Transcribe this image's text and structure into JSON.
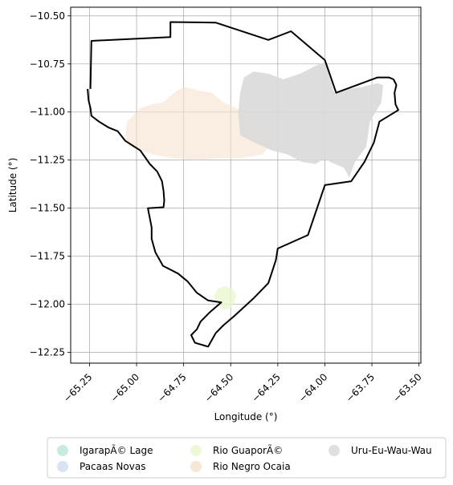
{
  "chart_data": {
    "type": "map",
    "xlabel": "Longitude (°)",
    "ylabel": "Latitude (°)",
    "xlim": [
      -65.35,
      -63.49
    ],
    "ylim": [
      -12.306,
      -10.455
    ],
    "xticks": [
      -65.25,
      -65.0,
      -64.75,
      -64.5,
      -64.25,
      -64.0,
      -63.75,
      -63.5
    ],
    "xtick_labels": [
      "−65.25",
      "−65.00",
      "−64.75",
      "−64.50",
      "−64.25",
      "−64.00",
      "−63.75",
      "−63.50"
    ],
    "yticks": [
      -10.5,
      -10.75,
      -11.0,
      -11.25,
      -11.5,
      -11.75,
      -12.0,
      -12.25
    ],
    "ytick_labels": [
      "−10.50",
      "−10.75",
      "−11.00",
      "−11.25",
      "−11.50",
      "−11.75",
      "−12.00",
      "−12.25"
    ],
    "grid": true,
    "legend_placement": "bottom-center",
    "boundary": {
      "color": "#000000",
      "coords": [
        [
          -65.26,
          -10.88
        ],
        [
          -65.255,
          -10.94
        ],
        [
          -65.245,
          -10.98
        ],
        [
          -65.24,
          -11.02
        ],
        [
          -65.2,
          -11.05
        ],
        [
          -65.15,
          -11.08
        ],
        [
          -65.1,
          -11.1
        ],
        [
          -65.06,
          -11.15
        ],
        [
          -64.98,
          -11.2
        ],
        [
          -64.93,
          -11.27
        ],
        [
          -64.89,
          -11.31
        ],
        [
          -64.88,
          -11.33
        ],
        [
          -64.865,
          -11.36
        ],
        [
          -64.857,
          -11.41
        ],
        [
          -64.853,
          -11.46
        ],
        [
          -64.857,
          -11.495
        ],
        [
          -64.94,
          -11.5
        ],
        [
          -64.92,
          -11.6
        ],
        [
          -64.92,
          -11.66
        ],
        [
          -64.9,
          -11.73
        ],
        [
          -64.86,
          -11.8
        ],
        [
          -64.78,
          -11.84
        ],
        [
          -64.73,
          -11.88
        ],
        [
          -64.68,
          -11.94
        ],
        [
          -64.62,
          -11.98
        ],
        [
          -64.55,
          -11.99
        ],
        [
          -64.61,
          -12.04
        ],
        [
          -64.66,
          -12.09
        ],
        [
          -64.68,
          -12.13
        ],
        [
          -64.71,
          -12.16
        ],
        [
          -64.69,
          -12.2
        ],
        [
          -64.62,
          -12.22
        ],
        [
          -64.58,
          -12.15
        ],
        [
          -64.54,
          -12.11
        ],
        [
          -64.48,
          -12.06
        ],
        [
          -64.38,
          -11.97
        ],
        [
          -64.3,
          -11.89
        ],
        [
          -64.26,
          -11.77
        ],
        [
          -64.25,
          -11.71
        ],
        [
          -64.09,
          -11.64
        ],
        [
          -64.0,
          -11.38
        ],
        [
          -63.86,
          -11.36
        ],
        [
          -63.79,
          -11.26
        ],
        [
          -63.74,
          -11.16
        ],
        [
          -63.71,
          -11.05
        ],
        [
          -63.61,
          -10.99
        ],
        [
          -63.625,
          -10.96
        ],
        [
          -63.63,
          -10.9
        ],
        [
          -63.62,
          -10.86
        ],
        [
          -63.635,
          -10.83
        ],
        [
          -63.66,
          -10.82
        ],
        [
          -63.69,
          -10.82
        ],
        [
          -63.72,
          -10.82
        ],
        [
          -63.94,
          -10.9
        ],
        [
          -64.0,
          -10.73
        ],
        [
          -64.18,
          -10.58
        ],
        [
          -64.3,
          -10.625
        ],
        [
          -64.58,
          -10.535
        ],
        [
          -64.82,
          -10.532
        ],
        [
          -64.82,
          -10.61
        ],
        [
          -65.24,
          -10.63
        ],
        [
          -65.245,
          -10.88
        ]
      ]
    },
    "series": [
      {
        "name": "IgarapÃ© Lage",
        "color": "#bfe8d9",
        "opacity": 0.7,
        "coords": []
      },
      {
        "name": "Pacaas Novas",
        "color": "#d4deee",
        "opacity": 0.7,
        "coords": []
      },
      {
        "name": "Rio GuaporÃ©",
        "color": "#e9f7cf",
        "opacity": 0.8,
        "coords": [
          [
            -64.57,
            -11.92
          ],
          [
            -64.53,
            -11.905
          ],
          [
            -64.49,
            -11.92
          ],
          [
            -64.47,
            -11.95
          ],
          [
            -64.48,
            -11.99
          ],
          [
            -64.5,
            -12.02
          ],
          [
            -64.54,
            -12.03
          ],
          [
            -64.57,
            -12.0
          ],
          [
            -64.59,
            -11.96
          ]
        ]
      },
      {
        "name": "Rio Negro Ocaia",
        "color": "#f5e2cd",
        "opacity": 0.6,
        "coords": [
          [
            -65.05,
            -11.05
          ],
          [
            -64.98,
            -10.98
          ],
          [
            -64.92,
            -10.96
          ],
          [
            -64.86,
            -10.95
          ],
          [
            -64.8,
            -10.9
          ],
          [
            -64.75,
            -10.87
          ],
          [
            -64.66,
            -10.89
          ],
          [
            -64.6,
            -10.9
          ],
          [
            -64.54,
            -10.95
          ],
          [
            -64.47,
            -10.98
          ],
          [
            -64.42,
            -11.02
          ],
          [
            -64.35,
            -11.05
          ],
          [
            -64.3,
            -11.1
          ],
          [
            -64.28,
            -11.16
          ],
          [
            -64.33,
            -11.22
          ],
          [
            -64.44,
            -11.24
          ],
          [
            -64.56,
            -11.24
          ],
          [
            -64.68,
            -11.25
          ],
          [
            -64.8,
            -11.24
          ],
          [
            -64.92,
            -11.22
          ],
          [
            -65.04,
            -11.18
          ],
          [
            -65.06,
            -11.12
          ]
        ]
      },
      {
        "name": "Uru-Eu-Wau-Wau",
        "color": "#d9d9d9",
        "opacity": 0.9,
        "coords": [
          [
            -64.43,
            -10.82
          ],
          [
            -64.38,
            -10.79
          ],
          [
            -64.3,
            -10.8
          ],
          [
            -64.22,
            -10.83
          ],
          [
            -64.13,
            -10.8
          ],
          [
            -64.05,
            -10.76
          ],
          [
            -64.0,
            -10.74
          ],
          [
            -63.95,
            -10.9
          ],
          [
            -63.88,
            -10.88
          ],
          [
            -63.8,
            -10.87
          ],
          [
            -63.72,
            -10.85
          ],
          [
            -63.69,
            -10.86
          ],
          [
            -63.7,
            -10.95
          ],
          [
            -63.73,
            -11.0
          ],
          [
            -63.76,
            -11.05
          ],
          [
            -63.78,
            -11.18
          ],
          [
            -63.84,
            -11.26
          ],
          [
            -63.87,
            -11.34
          ],
          [
            -63.9,
            -11.29
          ],
          [
            -63.97,
            -11.26
          ],
          [
            -64.0,
            -11.24
          ],
          [
            -64.05,
            -11.27
          ],
          [
            -64.12,
            -11.26
          ],
          [
            -64.2,
            -11.22
          ],
          [
            -64.28,
            -11.2
          ],
          [
            -64.37,
            -11.16
          ],
          [
            -64.45,
            -11.12
          ],
          [
            -64.46,
            -11.0
          ],
          [
            -64.45,
            -10.9
          ]
        ]
      }
    ]
  }
}
